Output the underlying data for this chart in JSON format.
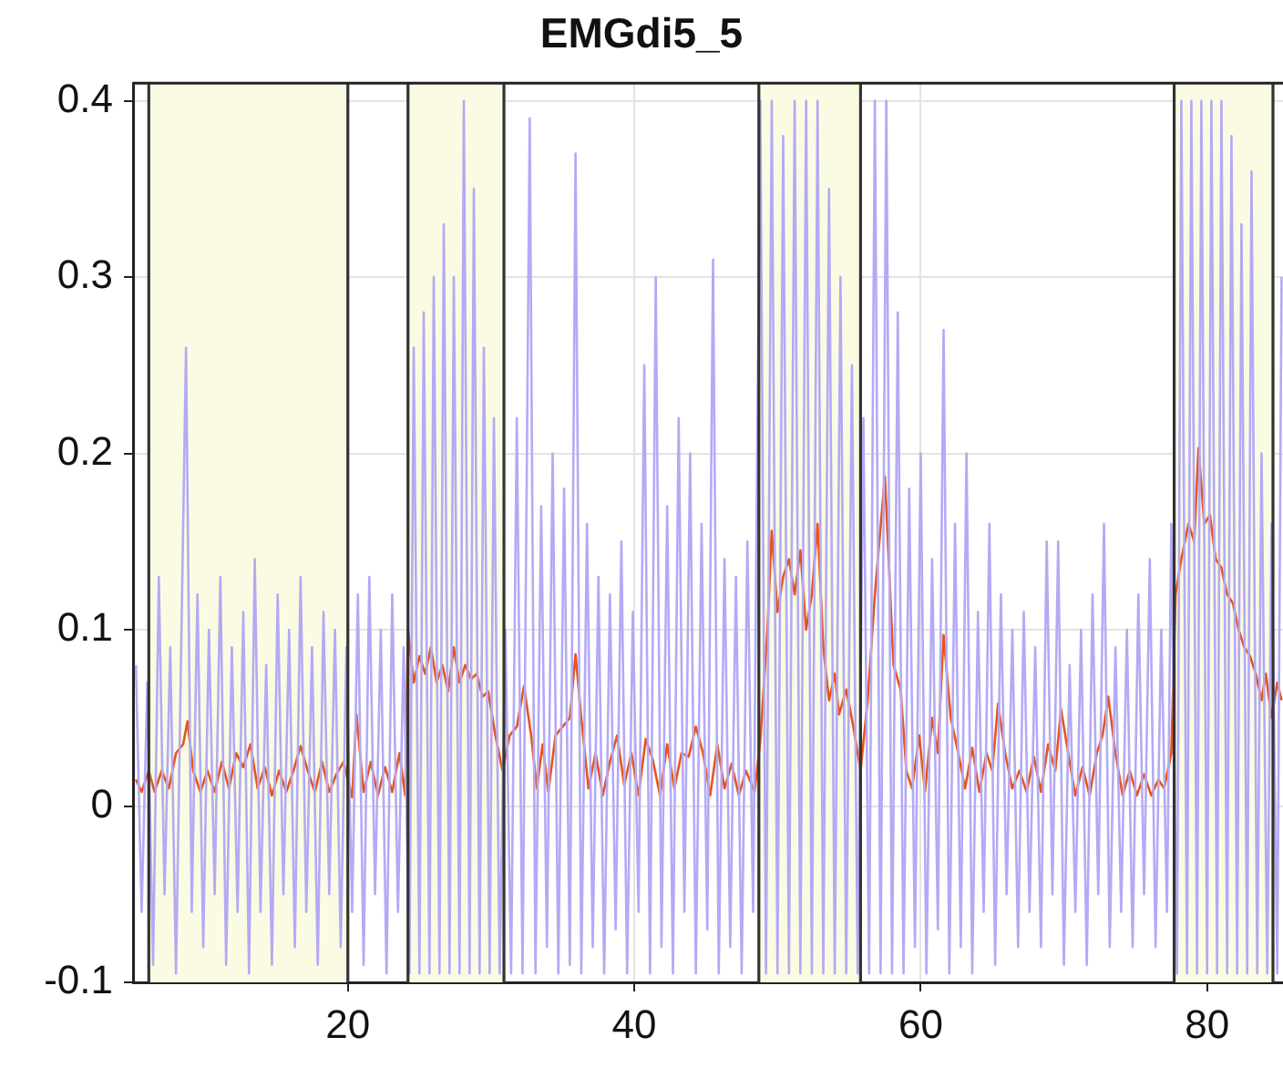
{
  "chart_data": {
    "type": "line",
    "title": "EMGdi5_5",
    "xlim": [
      5,
      85.3
    ],
    "xticks": [
      20,
      40,
      60,
      80
    ],
    "ylim": [
      -0.1,
      0.41
    ],
    "yticks": [
      -0.1,
      0,
      0.1,
      0.2,
      0.3,
      0.4
    ],
    "grid": true,
    "legend": false,
    "marker": "none",
    "line_style": "solid",
    "bands": [
      {
        "axis": "x",
        "from": 6.1,
        "to": 20,
        "color": "#fbfbe4"
      },
      {
        "axis": "x",
        "from": 24.2,
        "to": 30.9,
        "color": "#fbfbe4"
      },
      {
        "axis": "x",
        "from": 48.7,
        "to": 55.8,
        "color": "#fbfbe4"
      },
      {
        "axis": "x",
        "from": 77.7,
        "to": 84.6,
        "color": "#fbfbe4"
      }
    ],
    "ref_lines": [
      {
        "axis": "x",
        "value": 6.1,
        "color": "#333333"
      },
      {
        "axis": "x",
        "value": 20,
        "color": "#333333"
      },
      {
        "axis": "x",
        "value": 24.2,
        "color": "#333333"
      },
      {
        "axis": "x",
        "value": 30.9,
        "color": "#333333"
      },
      {
        "axis": "x",
        "value": 48.7,
        "color": "#333333"
      },
      {
        "axis": "x",
        "value": 55.8,
        "color": "#333333"
      },
      {
        "axis": "x",
        "value": 77.7,
        "color": "#333333"
      },
      {
        "axis": "x",
        "value": 84.6,
        "color": "#333333"
      }
    ],
    "series": [
      {
        "color": "#b3aaf5",
        "x": [
          5.2,
          5.6,
          6.0,
          6.4,
          6.8,
          7.2,
          7.6,
          8.0,
          8.7,
          9.1,
          9.5,
          9.9,
          10.3,
          10.7,
          11.1,
          11.5,
          11.9,
          12.3,
          12.7,
          13.1,
          13.5,
          13.9,
          14.3,
          14.7,
          15.1,
          15.5,
          15.9,
          16.3,
          16.7,
          17.1,
          17.5,
          17.9,
          18.3,
          18.7,
          19.1,
          19.5,
          19.9,
          20.3,
          20.7,
          21.1,
          21.5,
          21.9,
          22.3,
          22.7,
          23.1,
          23.5,
          23.9,
          24.3,
          24.6,
          25.0,
          25.3,
          25.7,
          26.0,
          26.4,
          26.7,
          27.1,
          27.4,
          27.8,
          28.1,
          28.5,
          28.8,
          29.2,
          29.5,
          29.9,
          30.2,
          30.6,
          31.0,
          31.4,
          31.8,
          32.2,
          32.7,
          33.1,
          33.5,
          33.9,
          34.3,
          34.7,
          35.1,
          35.5,
          35.9,
          36.3,
          36.7,
          37.1,
          37.5,
          37.9,
          38.3,
          38.7,
          39.1,
          39.5,
          39.9,
          40.3,
          40.7,
          41.1,
          41.5,
          41.9,
          42.3,
          42.7,
          43.1,
          43.5,
          43.9,
          44.3,
          44.7,
          45.1,
          45.5,
          45.9,
          46.3,
          46.7,
          47.1,
          47.5,
          47.9,
          48.3,
          48.8,
          49.2,
          49.6,
          50.0,
          50.4,
          50.8,
          51.2,
          51.6,
          52.0,
          52.4,
          52.8,
          53.2,
          53.6,
          54.0,
          54.4,
          54.8,
          55.2,
          55.6,
          56.0,
          56.4,
          56.8,
          57.2,
          57.6,
          58.0,
          58.4,
          58.8,
          59.2,
          59.6,
          60.0,
          60.4,
          60.8,
          61.2,
          61.6,
          62.0,
          62.4,
          62.8,
          63.2,
          63.6,
          64.0,
          64.4,
          64.8,
          65.2,
          65.6,
          66.0,
          66.4,
          66.8,
          67.2,
          67.6,
          68.0,
          68.4,
          68.8,
          69.2,
          69.6,
          70.0,
          70.4,
          70.8,
          71.2,
          71.6,
          72.0,
          72.4,
          72.8,
          73.2,
          73.6,
          74.0,
          74.4,
          74.8,
          75.2,
          75.6,
          76.0,
          76.4,
          76.8,
          77.2,
          77.5,
          77.9,
          78.2,
          78.6,
          78.9,
          79.3,
          79.6,
          80.0,
          80.3,
          80.7,
          81.0,
          81.4,
          81.7,
          82.1,
          82.4,
          82.8,
          83.1,
          83.5,
          83.8,
          84.2,
          84.5,
          84.9,
          85.2
        ],
        "values": [
          0.08,
          -0.06,
          0.07,
          -0.09,
          0.13,
          -0.05,
          0.09,
          -0.095,
          0.26,
          -0.06,
          0.12,
          -0.08,
          0.1,
          -0.05,
          0.13,
          -0.09,
          0.09,
          -0.06,
          0.11,
          -0.095,
          0.14,
          -0.06,
          0.08,
          -0.09,
          0.12,
          -0.05,
          0.1,
          -0.08,
          0.13,
          -0.06,
          0.09,
          -0.09,
          0.11,
          -0.05,
          0.1,
          -0.08,
          0.09,
          -0.06,
          0.12,
          -0.09,
          0.13,
          -0.05,
          0.1,
          -0.095,
          0.12,
          -0.06,
          0.09,
          -0.095,
          0.26,
          -0.095,
          0.28,
          -0.095,
          0.3,
          -0.095,
          0.33,
          -0.095,
          0.3,
          -0.095,
          0.4,
          -0.095,
          0.35,
          -0.095,
          0.26,
          -0.095,
          0.22,
          -0.095,
          0.1,
          -0.095,
          0.22,
          -0.095,
          0.39,
          -0.095,
          0.17,
          -0.08,
          0.2,
          -0.095,
          0.18,
          -0.09,
          0.37,
          -0.095,
          0.16,
          -0.08,
          0.13,
          -0.095,
          0.12,
          -0.07,
          0.15,
          -0.095,
          0.11,
          -0.06,
          0.25,
          -0.095,
          0.3,
          -0.08,
          0.17,
          -0.095,
          0.22,
          -0.06,
          0.2,
          -0.095,
          0.16,
          -0.07,
          0.31,
          -0.095,
          0.14,
          -0.08,
          0.13,
          -0.095,
          0.15,
          -0.06,
          0.4,
          -0.095,
          0.4,
          -0.095,
          0.38,
          -0.095,
          0.4,
          -0.095,
          0.4,
          -0.095,
          0.4,
          -0.095,
          0.35,
          -0.095,
          0.3,
          -0.095,
          0.25,
          -0.095,
          0.22,
          -0.095,
          0.4,
          -0.095,
          0.4,
          -0.095,
          0.28,
          -0.095,
          0.18,
          -0.08,
          0.2,
          -0.095,
          0.14,
          -0.07,
          0.27,
          -0.095,
          0.16,
          -0.08,
          0.2,
          -0.095,
          0.11,
          -0.06,
          0.16,
          -0.09,
          0.12,
          -0.05,
          0.1,
          -0.08,
          0.11,
          -0.06,
          0.09,
          -0.08,
          0.15,
          -0.05,
          0.15,
          -0.09,
          0.08,
          -0.06,
          0.1,
          -0.09,
          0.12,
          -0.05,
          0.16,
          -0.08,
          0.09,
          -0.06,
          0.1,
          -0.08,
          0.12,
          -0.05,
          0.14,
          -0.08,
          0.1,
          -0.06,
          0.16,
          -0.095,
          0.4,
          -0.095,
          0.4,
          -0.095,
          0.4,
          -0.095,
          0.4,
          -0.095,
          0.4,
          -0.095,
          0.38,
          -0.095,
          0.33,
          -0.095,
          0.36,
          -0.095,
          0.2,
          -0.095,
          0.16,
          -0.095,
          0.3
        ]
      },
      {
        "color": "#e8541a",
        "x": [
          5.2,
          5.6,
          6.1,
          6.5,
          7.0,
          7.5,
          8.0,
          8.5,
          8.8,
          9.2,
          9.7,
          10.2,
          10.7,
          11.2,
          11.7,
          12.2,
          12.7,
          13.2,
          13.7,
          14.2,
          14.7,
          15.2,
          15.7,
          16.2,
          16.7,
          17.2,
          17.7,
          18.2,
          18.7,
          19.2,
          19.7,
          20.3,
          20.6,
          21.1,
          21.6,
          22.1,
          22.6,
          23.1,
          23.6,
          24.0,
          24.2,
          24.6,
          25.0,
          25.4,
          25.8,
          26.2,
          26.6,
          27.0,
          27.4,
          27.8,
          28.2,
          28.6,
          29.0,
          29.4,
          29.8,
          30.3,
          30.8,
          31.3,
          31.8,
          32.3,
          32.8,
          33.2,
          33.6,
          34.0,
          34.5,
          35.0,
          35.5,
          35.9,
          36.3,
          36.8,
          37.3,
          37.8,
          38.3,
          38.8,
          39.3,
          39.8,
          40.3,
          40.8,
          41.3,
          41.8,
          42.3,
          42.8,
          43.3,
          43.8,
          44.3,
          44.8,
          45.3,
          45.8,
          46.3,
          46.8,
          47.3,
          47.8,
          48.4,
          48.8,
          49.3,
          49.6,
          50.0,
          50.4,
          50.8,
          51.2,
          51.6,
          52.0,
          52.4,
          52.8,
          53.2,
          53.6,
          54.0,
          54.3,
          54.8,
          55.3,
          55.8,
          56.3,
          56.8,
          57.5,
          58.1,
          58.6,
          59.0,
          59.4,
          59.9,
          60.3,
          60.8,
          61.2,
          61.6,
          62.1,
          62.6,
          63.1,
          63.6,
          64.1,
          64.6,
          65.0,
          65.4,
          65.9,
          66.4,
          66.9,
          67.4,
          67.9,
          68.4,
          68.9,
          69.4,
          69.8,
          70.3,
          70.8,
          71.3,
          71.8,
          72.3,
          72.7,
          73.1,
          73.6,
          74.1,
          74.6,
          75.1,
          75.6,
          76.1,
          76.6,
          77.0,
          77.5,
          77.8,
          78.2,
          78.7,
          79.1,
          79.4,
          79.8,
          80.2,
          80.6,
          81.0,
          81.4,
          81.8,
          82.2,
          82.6,
          83.0,
          83.4,
          83.8,
          84.1,
          84.5,
          84.9,
          85.2
        ],
        "values": [
          0.015,
          0.008,
          0.02,
          0.008,
          0.02,
          0.01,
          0.03,
          0.035,
          0.048,
          0.02,
          0.008,
          0.02,
          0.008,
          0.025,
          0.01,
          0.03,
          0.022,
          0.035,
          0.01,
          0.022,
          0.006,
          0.02,
          0.008,
          0.02,
          0.034,
          0.02,
          0.008,
          0.025,
          0.008,
          0.018,
          0.025,
          0.005,
          0.052,
          0.008,
          0.025,
          0.006,
          0.022,
          0.008,
          0.03,
          0.006,
          0.1,
          0.07,
          0.085,
          0.075,
          0.09,
          0.07,
          0.08,
          0.065,
          0.09,
          0.07,
          0.08,
          0.072,
          0.075,
          0.062,
          0.065,
          0.04,
          0.02,
          0.04,
          0.045,
          0.068,
          0.04,
          0.01,
          0.035,
          0.008,
          0.04,
          0.045,
          0.05,
          0.086,
          0.05,
          0.01,
          0.03,
          0.006,
          0.025,
          0.04,
          0.012,
          0.03,
          0.006,
          0.038,
          0.026,
          0.006,
          0.035,
          0.01,
          0.03,
          0.028,
          0.045,
          0.03,
          0.006,
          0.035,
          0.01,
          0.024,
          0.006,
          0.02,
          0.008,
          0.037,
          0.1,
          0.156,
          0.11,
          0.13,
          0.14,
          0.12,
          0.145,
          0.1,
          0.12,
          0.16,
          0.09,
          0.06,
          0.075,
          0.052,
          0.066,
          0.045,
          0.02,
          0.06,
          0.12,
          0.187,
          0.08,
          0.066,
          0.02,
          0.01,
          0.04,
          0.008,
          0.05,
          0.03,
          0.097,
          0.05,
          0.031,
          0.01,
          0.033,
          0.008,
          0.03,
          0.02,
          0.058,
          0.03,
          0.01,
          0.02,
          0.008,
          0.028,
          0.008,
          0.035,
          0.02,
          0.055,
          0.03,
          0.006,
          0.022,
          0.006,
          0.03,
          0.04,
          0.062,
          0.03,
          0.006,
          0.02,
          0.006,
          0.018,
          0.006,
          0.015,
          0.01,
          0.03,
          0.12,
          0.14,
          0.16,
          0.15,
          0.203,
          0.16,
          0.165,
          0.14,
          0.135,
          0.12,
          0.115,
          0.1,
          0.09,
          0.085,
          0.075,
          0.06,
          0.075,
          0.05,
          0.07,
          0.06
        ]
      }
    ]
  }
}
